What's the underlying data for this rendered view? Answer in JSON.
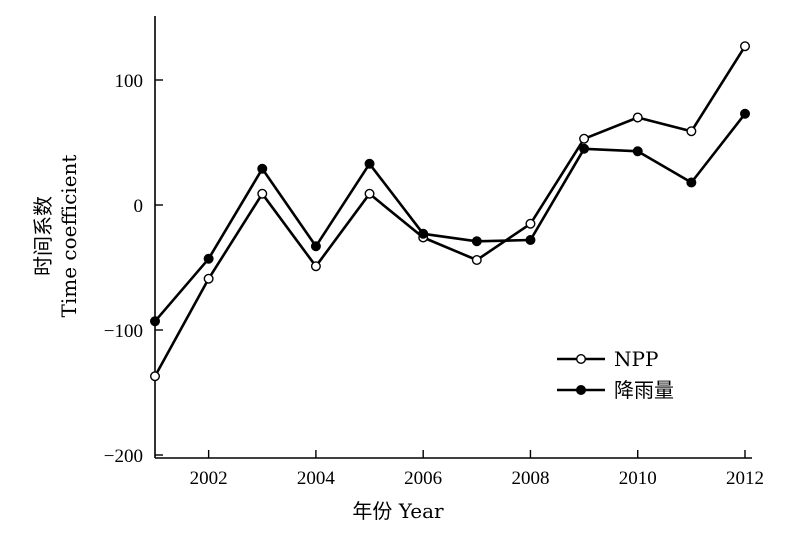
{
  "chart_data": {
    "type": "line",
    "x": [
      2001,
      2002,
      2003,
      2004,
      2005,
      2006,
      2007,
      2008,
      2009,
      2010,
      2011,
      2012
    ],
    "series": [
      {
        "name": "NPP",
        "marker": "open-circle",
        "color": "#000000",
        "values": [
          -137,
          -59,
          9,
          -49,
          9,
          -26,
          -44,
          -15,
          53,
          70,
          59,
          127
        ]
      },
      {
        "name": "降雨量",
        "marker": "filled-circle",
        "color": "#000000",
        "values": [
          -93,
          -43,
          29,
          -33,
          33,
          -23,
          -29,
          -28,
          45,
          43,
          18,
          73
        ]
      }
    ],
    "xlabel": "年份 Year",
    "ylabel_cn": "时间系数",
    "ylabel_en": "Time coefficient",
    "xlim": [
      2001,
      2012.2
    ],
    "ylim": [
      -200,
      150
    ],
    "xticks": [
      2002,
      2004,
      2006,
      2008,
      2010,
      2012
    ],
    "yticks": [
      -200,
      -100,
      0,
      100
    ],
    "ytick_labels": [
      "−200",
      "−100",
      "0",
      "100"
    ],
    "legend_position": "lower-right",
    "grid": false
  }
}
